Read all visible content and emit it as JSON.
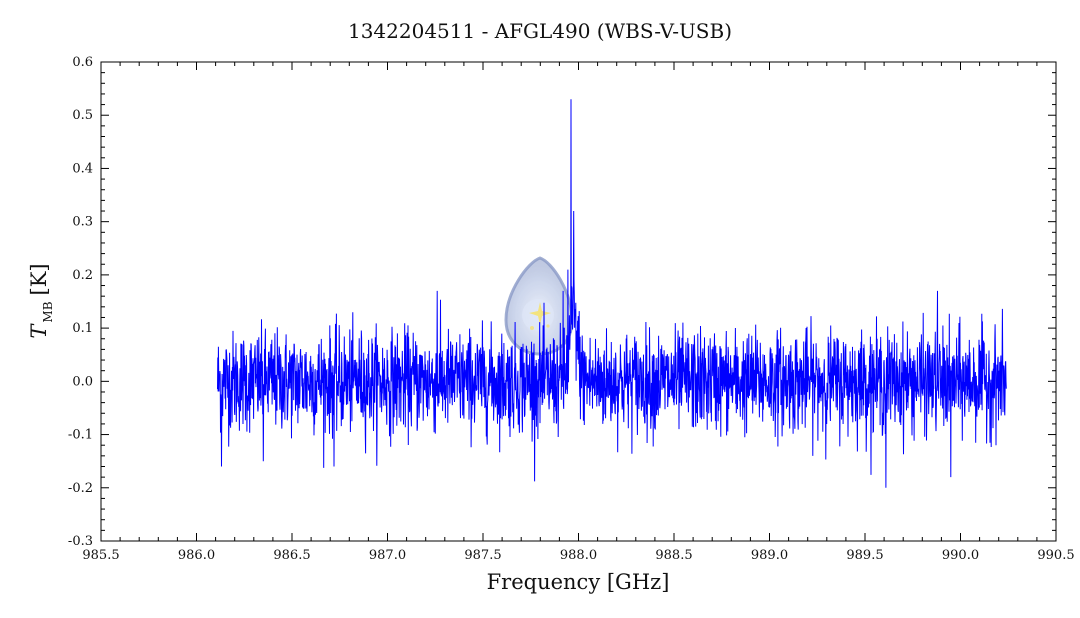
{
  "chart_data": {
    "type": "line",
    "title": "1342204511 - AFGL490 (WBS-V-USB)",
    "xlabel": "Frequency [GHz]",
    "ylabel_main": "T",
    "ylabel_sub": "MB",
    "ylabel_unit": "[K]",
    "xlim": [
      985.5,
      990.5
    ],
    "ylim": [
      -0.3,
      0.6
    ],
    "x_ticks": [
      985.5,
      986.0,
      986.5,
      987.0,
      987.5,
      988.0,
      988.5,
      989.0,
      989.5,
      990.0,
      990.5
    ],
    "x_tick_labels": [
      "985.5",
      "986.0",
      "986.5",
      "987.0",
      "987.5",
      "988.0",
      "988.5",
      "989.0",
      "989.5",
      "990.0",
      "990.5"
    ],
    "y_ticks": [
      -0.3,
      -0.2,
      -0.1,
      0.0,
      0.1,
      0.2,
      0.3,
      0.4,
      0.5,
      0.6
    ],
    "y_tick_labels": [
      "-0.3",
      "-0.2",
      "-0.1",
      "0.0",
      "0.1",
      "0.2",
      "0.3",
      "0.4",
      "0.5",
      "0.6"
    ],
    "grid": false,
    "series": [
      {
        "color": "#0000ff",
        "x_range": [
          986.11,
          990.24
        ],
        "noise_rms": 0.055,
        "baseline": 0.0,
        "line_center": 987.975,
        "peak": 0.53,
        "features": [
          {
            "x": 987.96,
            "y": 0.53
          },
          {
            "x": 987.975,
            "y": 0.32
          },
          {
            "x": 987.945,
            "y": 0.21
          },
          {
            "x": 987.92,
            "y": 0.17
          }
        ],
        "noise_extremes": [
          {
            "x": 986.13,
            "y": -0.16
          },
          {
            "x": 986.35,
            "y": -0.15
          },
          {
            "x": 986.72,
            "y": -0.16
          },
          {
            "x": 989.61,
            "y": -0.2
          },
          {
            "x": 989.95,
            "y": -0.18
          },
          {
            "x": 987.26,
            "y": 0.17
          },
          {
            "x": 989.88,
            "y": 0.17
          }
        ]
      }
    ]
  },
  "logo": {
    "name": "herschel-logo-icon",
    "colors": [
      "#c9d4ea",
      "#7d8fc0",
      "#f3e06a"
    ]
  }
}
